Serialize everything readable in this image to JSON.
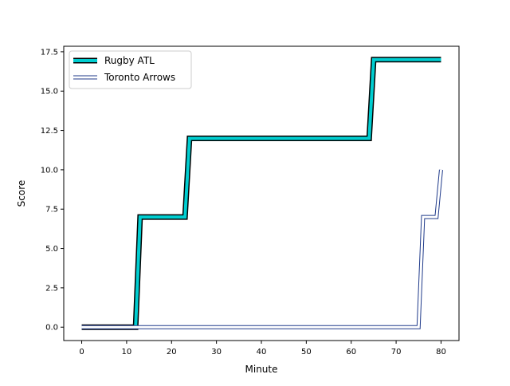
{
  "chart_data": {
    "type": "line",
    "title": "",
    "xlabel": "Minute",
    "ylabel": "Score",
    "xlim": [
      -4,
      84
    ],
    "ylim": [
      -0.85,
      17.85
    ],
    "xticks": [
      0,
      10,
      20,
      30,
      40,
      50,
      60,
      70,
      80
    ],
    "yticks": [
      0.0,
      2.5,
      5.0,
      7.5,
      10.0,
      12.5,
      15.0,
      17.5
    ],
    "xtick_labels": [
      "0",
      "10",
      "20",
      "30",
      "40",
      "50",
      "60",
      "70",
      "80"
    ],
    "ytick_labels": [
      "0.0",
      "2.5",
      "5.0",
      "7.5",
      "10.0",
      "12.5",
      "15.0",
      "17.5"
    ],
    "grid": false,
    "legend_position": "top-left",
    "series": [
      {
        "name": "Rugby ATL",
        "color": "#00ced1",
        "edge_color": "#000000",
        "style": "thick-outlined",
        "x": [
          0,
          12,
          13,
          23,
          24,
          64,
          65,
          80
        ],
        "y": [
          0,
          0,
          7,
          7,
          12,
          12,
          17,
          17
        ]
      },
      {
        "name": "Toronto Arrows",
        "color": "#ffffff",
        "edge_color": "#1f3a8a",
        "style": "hollow-outlined",
        "x": [
          0,
          75,
          76,
          79,
          80
        ],
        "y": [
          0,
          0,
          7,
          7,
          10
        ]
      }
    ]
  }
}
